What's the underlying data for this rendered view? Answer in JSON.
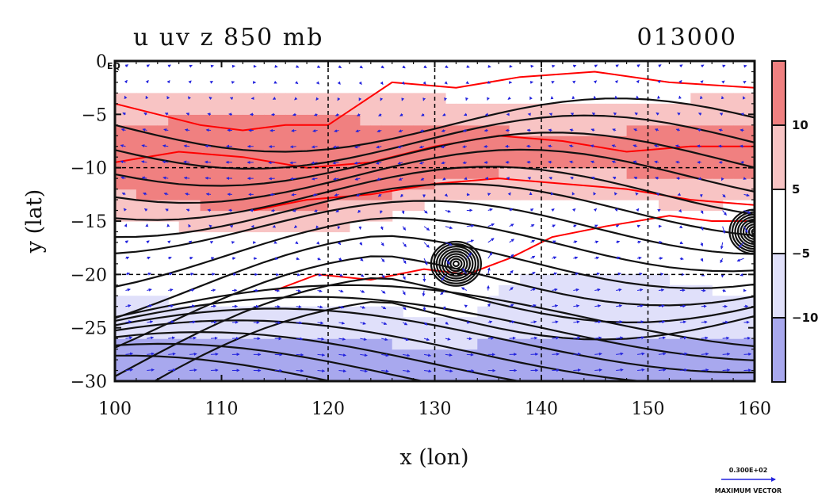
{
  "chart_data": {
    "type": "heatmap",
    "title": "u uv z 850 mb",
    "timestamp": "013000",
    "xlabel": "x (lon)",
    "ylabel": "y (lat)",
    "xlim": [
      100,
      160
    ],
    "ylim": [
      -30,
      0
    ],
    "x_ticks": [
      {
        "value": 100,
        "label": "100"
      },
      {
        "value": 110,
        "label": "110"
      },
      {
        "value": 120,
        "label": "120"
      },
      {
        "value": 130,
        "label": "130"
      },
      {
        "value": 140,
        "label": "140"
      },
      {
        "value": 150,
        "label": "150"
      },
      {
        "value": 160,
        "label": "160"
      }
    ],
    "y_ticks": [
      {
        "value": 0,
        "label": "0"
      },
      {
        "value": -5,
        "label": "−5"
      },
      {
        "value": -10,
        "label": "−10"
      },
      {
        "value": -15,
        "label": "−15"
      },
      {
        "value": -20,
        "label": "−20"
      },
      {
        "value": -25,
        "label": "−25"
      },
      {
        "value": -30,
        "label": "−30"
      }
    ],
    "equator_label": "EQ",
    "grid": true,
    "grid_lines_x": [
      120,
      130,
      140,
      150
    ],
    "grid_lines_y": [
      -10,
      -20
    ],
    "shading_levels": [
      {
        "from": 10,
        "to": 15,
        "color": "#f08080"
      },
      {
        "from": 5,
        "to": 10,
        "color": "#f8c4c4"
      },
      {
        "from": -5,
        "to": 5,
        "color": "#ffffff"
      },
      {
        "from": -10,
        "to": -5,
        "color": "#e0e0fa"
      },
      {
        "from": -15,
        "to": -10,
        "color": "#a8a8ee"
      }
    ],
    "colorbar_labels": [
      {
        "value": 10,
        "label": "10"
      },
      {
        "value": 5,
        "label": "5"
      },
      {
        "value": -5,
        "label": "−5"
      },
      {
        "value": -10,
        "label": "−10"
      }
    ],
    "colorbar_range": [
      -15,
      15
    ],
    "cyclone_centers": [
      {
        "lon": 132,
        "lat": -19
      },
      {
        "lon": 160,
        "lat": -16
      }
    ],
    "vector_reference": {
      "magnitude_label": "0.300E+02",
      "caption": "MAXIMUM VECTOR"
    },
    "colors": {
      "positive_contour": "#ff0000",
      "height_contour": "#111111",
      "vector": "#2222dd"
    }
  }
}
